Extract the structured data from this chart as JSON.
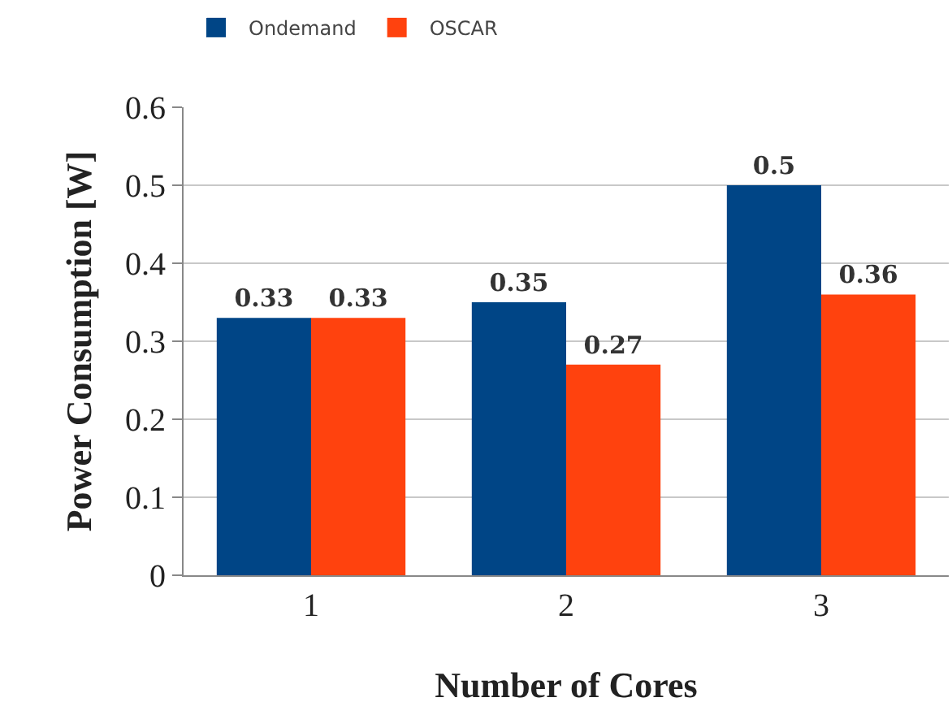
{
  "chart_data": {
    "type": "bar",
    "xlabel": "Number of Cores",
    "ylabel": "Power Consumption [W]",
    "categories": [
      "1",
      "2",
      "3"
    ],
    "series": [
      {
        "name": "Ondemand",
        "color": "#004586",
        "values": [
          0.33,
          0.35,
          0.5
        ]
      },
      {
        "name": "OSCAR",
        "color": "#ff420e",
        "values": [
          0.33,
          0.27,
          0.36
        ]
      }
    ],
    "ylim": [
      0,
      0.6
    ],
    "yticks": [
      0,
      0.1,
      0.2,
      0.3,
      0.4,
      0.5,
      0.6
    ],
    "grid": "y",
    "legend": "top left",
    "data_labels": true
  }
}
